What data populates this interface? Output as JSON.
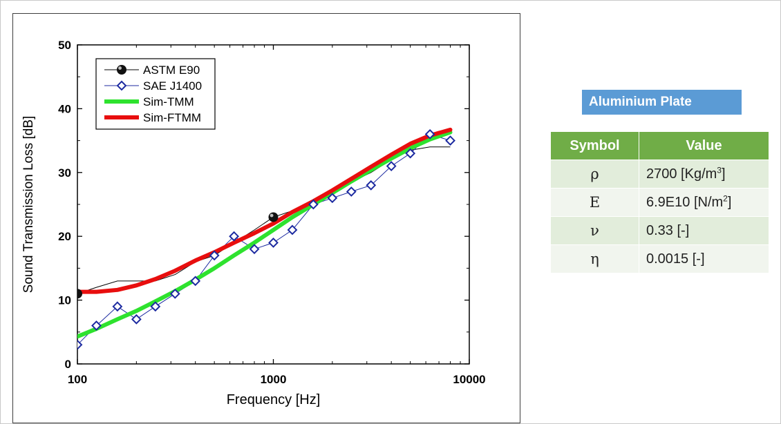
{
  "chart_data": {
    "type": "line",
    "xlabel": "Frequency [Hz]",
    "ylabel": "Sound Transmission Loss [dB]",
    "xscale": "log",
    "xlim": [
      100,
      10000
    ],
    "ylim": [
      0,
      50
    ],
    "x_ticks": [
      100,
      1000,
      10000
    ],
    "x_tick_labels": [
      "100",
      "1000",
      "10000"
    ],
    "y_ticks": [
      0,
      10,
      20,
      30,
      40,
      50
    ],
    "y_tick_labels": [
      "0",
      "10",
      "20",
      "30",
      "40",
      "50"
    ],
    "grid": false,
    "legend_position": "top-left",
    "series": [
      {
        "name": "ASTM E90",
        "style": "thin-line-with-sphere-markers",
        "color": "#000000",
        "line": [
          [
            100,
            11
          ],
          [
            125,
            12
          ],
          [
            160,
            13
          ],
          [
            200,
            13
          ],
          [
            250,
            13
          ],
          [
            315,
            14
          ],
          [
            400,
            16
          ],
          [
            500,
            17
          ],
          [
            630,
            19
          ],
          [
            800,
            21
          ],
          [
            1000,
            23
          ],
          [
            1250,
            24
          ],
          [
            1600,
            25.5
          ],
          [
            2000,
            27
          ],
          [
            2500,
            28.5
          ],
          [
            3150,
            30
          ],
          [
            4000,
            32
          ],
          [
            5000,
            33.5
          ],
          [
            6300,
            34
          ],
          [
            8000,
            34
          ]
        ],
        "markers": [
          [
            100,
            11
          ],
          [
            1000,
            23
          ]
        ]
      },
      {
        "name": "SAE J1400",
        "style": "thin-line-with-diamond-markers",
        "color": "#1c2aa0",
        "points": [
          [
            100,
            3
          ],
          [
            125,
            6
          ],
          [
            160,
            9
          ],
          [
            200,
            7
          ],
          [
            250,
            9
          ],
          [
            315,
            11
          ],
          [
            400,
            13
          ],
          [
            500,
            17
          ],
          [
            630,
            20
          ],
          [
            800,
            18
          ],
          [
            1000,
            19
          ],
          [
            1250,
            21
          ],
          [
            1600,
            25
          ],
          [
            2000,
            26
          ],
          [
            2500,
            27
          ],
          [
            3150,
            28
          ],
          [
            4000,
            31
          ],
          [
            5000,
            33
          ],
          [
            6300,
            36
          ],
          [
            8000,
            35
          ]
        ]
      },
      {
        "name": "Sim-TMM",
        "style": "thick-line",
        "color": "#2ee22e",
        "points": [
          [
            100,
            4.3
          ],
          [
            125,
            5.5
          ],
          [
            160,
            7
          ],
          [
            200,
            8.3
          ],
          [
            250,
            9.8
          ],
          [
            315,
            11.4
          ],
          [
            400,
            13.2
          ],
          [
            500,
            15
          ],
          [
            630,
            17
          ],
          [
            800,
            19
          ],
          [
            1000,
            21
          ],
          [
            1250,
            23
          ],
          [
            1600,
            25
          ],
          [
            2000,
            26.8
          ],
          [
            2500,
            28.6
          ],
          [
            3150,
            30.4
          ],
          [
            4000,
            32.2
          ],
          [
            5000,
            33.8
          ],
          [
            6300,
            35.2
          ],
          [
            8000,
            36.3
          ]
        ]
      },
      {
        "name": "Sim-FTMM",
        "style": "thick-line",
        "color": "#e80e0e",
        "points": [
          [
            100,
            11.3
          ],
          [
            125,
            11.3
          ],
          [
            160,
            11.6
          ],
          [
            200,
            12.3
          ],
          [
            250,
            13.3
          ],
          [
            315,
            14.6
          ],
          [
            400,
            16.2
          ],
          [
            500,
            17.5
          ],
          [
            630,
            19
          ],
          [
            800,
            20.5
          ],
          [
            1000,
            22
          ],
          [
            1250,
            23.8
          ],
          [
            1600,
            25.5
          ],
          [
            2000,
            27.2
          ],
          [
            2500,
            29
          ],
          [
            3150,
            30.9
          ],
          [
            4000,
            32.8
          ],
          [
            5000,
            34.5
          ],
          [
            6300,
            35.8
          ],
          [
            8000,
            36.7
          ]
        ]
      }
    ]
  },
  "table": {
    "title": "Aluminium Plate",
    "headers": [
      "Symbol",
      "Value"
    ],
    "rows": [
      {
        "symbol": "ρ",
        "value": "2700 [Kg/m",
        "sup": "3",
        "suffix": "]"
      },
      {
        "symbol": "E",
        "value": "6.9E10 [N/m",
        "sup": "2",
        "suffix": "]"
      },
      {
        "symbol": "ν",
        "value": "0.33  [-]",
        "sup": "",
        "suffix": ""
      },
      {
        "symbol": "η",
        "value": "0.0015  [-]",
        "sup": "",
        "suffix": ""
      }
    ]
  },
  "colors": {
    "table_title_bg": "#5b9bd5",
    "table_header_bg": "#70ad47",
    "table_row_odd": "#e2eddb",
    "table_row_even": "#f1f5ee"
  }
}
